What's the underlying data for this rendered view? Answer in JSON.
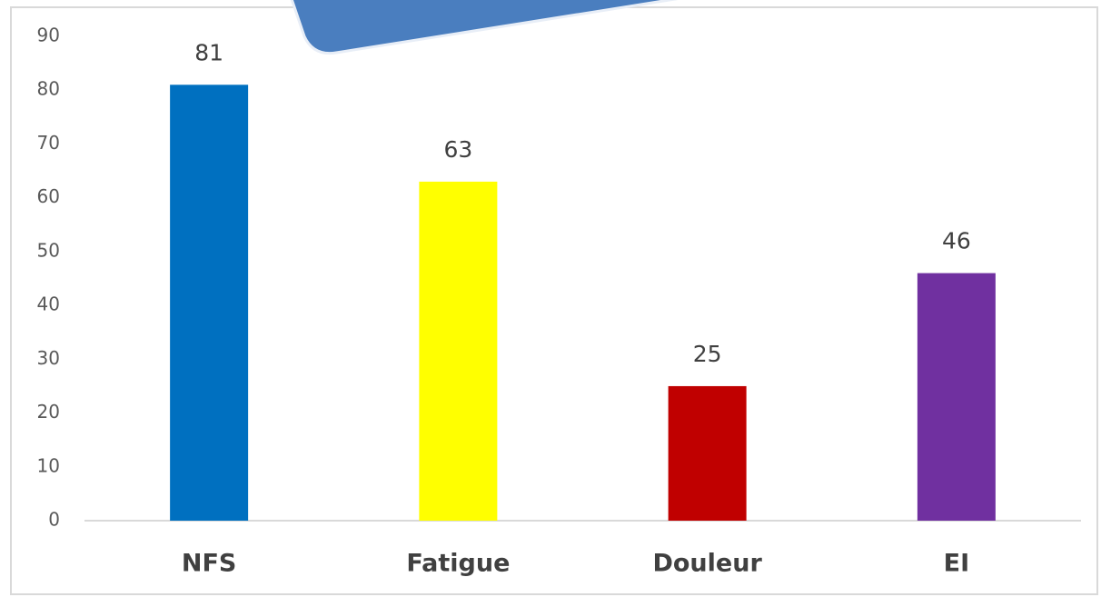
{
  "chart_data": {
    "type": "bar",
    "categories": [
      "NFS",
      "Fatigue",
      "Douleur",
      "EI"
    ],
    "values": [
      81,
      63,
      25,
      46
    ],
    "colors": [
      "#0070c0",
      "#ffff00",
      "#c00000",
      "#7030a0"
    ],
    "ylim": [
      0,
      90
    ],
    "yticks": [
      0,
      10,
      20,
      30,
      40,
      50,
      60,
      70,
      80,
      90
    ],
    "grid": false
  }
}
